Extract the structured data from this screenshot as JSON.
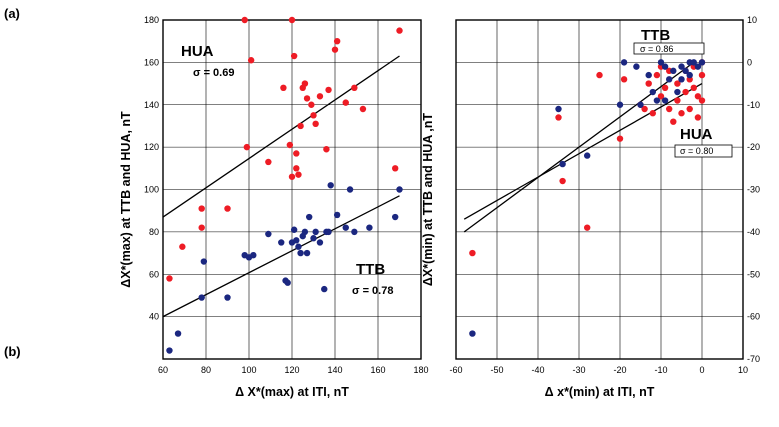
{
  "labels": {
    "a": "(a)",
    "b": "(b)"
  },
  "colors": {
    "red": "#ee1c25",
    "blue": "#1b2780",
    "axis": "#000000",
    "grid": "#000000"
  },
  "chart_data": [
    {
      "type": "scatter",
      "xlabel": "Δ X*(max) at ITI, nT",
      "ylabel": "ΔX*(max) at TTB and HUA, nT",
      "xlim": [
        60,
        180
      ],
      "ylim": [
        20,
        180
      ],
      "xticks": [
        60,
        80,
        100,
        120,
        140,
        160,
        180
      ],
      "yticks": [
        40,
        60,
        80,
        100,
        120,
        140,
        160,
        180
      ],
      "grid": true,
      "annotations": [
        {
          "name": "HUA",
          "sigma": "σ =  0.69"
        },
        {
          "name": "TTB",
          "sigma": "σ = 0.78"
        }
      ],
      "series": [
        {
          "name": "HUA",
          "color": "#ee1c25",
          "points": [
            [
              63,
              58
            ],
            [
              69,
              73
            ],
            [
              78,
              91
            ],
            [
              78,
              82
            ],
            [
              90,
              91
            ],
            [
              98,
              180
            ],
            [
              99,
              120
            ],
            [
              101,
              161
            ],
            [
              109,
              113
            ],
            [
              116,
              148
            ],
            [
              119,
              121
            ],
            [
              120,
              180
            ],
            [
              120,
              106
            ],
            [
              121,
              163
            ],
            [
              122,
              110
            ],
            [
              122,
              117
            ],
            [
              123,
              107
            ],
            [
              124,
              130
            ],
            [
              125,
              148
            ],
            [
              126,
              150
            ],
            [
              127,
              143
            ],
            [
              129,
              140
            ],
            [
              130,
              135
            ],
            [
              131,
              131
            ],
            [
              133,
              144
            ],
            [
              136,
              119
            ],
            [
              137,
              147
            ],
            [
              140,
              166
            ],
            [
              141,
              170
            ],
            [
              145,
              141
            ],
            [
              149,
              148
            ],
            [
              153,
              138
            ],
            [
              168,
              110
            ],
            [
              170,
              175
            ]
          ]
        },
        {
          "name": "TTB",
          "color": "#1b2780",
          "points": [
            [
              63,
              24
            ],
            [
              67,
              32
            ],
            [
              78,
              49
            ],
            [
              79,
              66
            ],
            [
              90,
              49
            ],
            [
              98,
              69
            ],
            [
              100,
              68
            ],
            [
              102,
              69
            ],
            [
              109,
              79
            ],
            [
              115,
              75
            ],
            [
              117,
              57
            ],
            [
              118,
              56
            ],
            [
              120,
              75
            ],
            [
              121,
              81
            ],
            [
              122,
              76
            ],
            [
              123,
              73
            ],
            [
              124,
              70
            ],
            [
              125,
              78
            ],
            [
              126,
              80
            ],
            [
              127,
              70
            ],
            [
              128,
              87
            ],
            [
              130,
              77
            ],
            [
              131,
              80
            ],
            [
              133,
              75
            ],
            [
              135,
              53
            ],
            [
              136,
              80
            ],
            [
              137,
              80
            ],
            [
              138,
              102
            ],
            [
              141,
              88
            ],
            [
              145,
              82
            ],
            [
              147,
              100
            ],
            [
              149,
              80
            ],
            [
              156,
              82
            ],
            [
              168,
              87
            ],
            [
              170,
              100
            ]
          ]
        }
      ],
      "fits": [
        {
          "series": "HUA",
          "from": [
            60,
            87
          ],
          "to": [
            170,
            163
          ]
        },
        {
          "series": "TTB",
          "from": [
            60,
            40
          ],
          "to": [
            170,
            97
          ]
        }
      ]
    },
    {
      "type": "scatter",
      "xlabel": "Δ x*(min) at ITI, nT",
      "ylabel": "ΔX*(min) at TTB and HUA ,nT",
      "xlim": [
        -60,
        10
      ],
      "ylim": [
        -70,
        10
      ],
      "xticks": [
        -60,
        -50,
        -40,
        -30,
        -20,
        -10,
        0,
        10
      ],
      "yticks": [
        -70,
        -60,
        -50,
        -40,
        -30,
        -20,
        -10,
        0,
        10
      ],
      "grid": true,
      "annotations": [
        {
          "name": "TTB",
          "sigma": "σ = 0.86"
        },
        {
          "name": "HUA",
          "sigma": "σ = 0.80"
        }
      ],
      "series": [
        {
          "name": "HUA",
          "color": "#ee1c25",
          "points": [
            [
              -56,
              -45
            ],
            [
              -35,
              -13
            ],
            [
              -34,
              -28
            ],
            [
              -28,
              -39
            ],
            [
              -25,
              -3
            ],
            [
              -20,
              -18
            ],
            [
              -19,
              -4
            ],
            [
              -15,
              -10
            ],
            [
              -13,
              -5
            ],
            [
              -12,
              -12
            ],
            [
              -11,
              -3
            ],
            [
              -10,
              -8
            ],
            [
              -9,
              -6
            ],
            [
              -8,
              -11
            ],
            [
              -8,
              -2
            ],
            [
              -7,
              -14
            ],
            [
              -6,
              -5
            ],
            [
              -6,
              -9
            ],
            [
              -5,
              -12
            ],
            [
              -4,
              -2
            ],
            [
              -4,
              -7
            ],
            [
              -3,
              -4
            ],
            [
              -3,
              -11
            ],
            [
              -2,
              -1
            ],
            [
              -2,
              -6
            ],
            [
              -1,
              -8
            ],
            [
              -1,
              -13
            ],
            [
              0,
              -3
            ],
            [
              0,
              -9
            ],
            [
              0,
              0
            ],
            [
              -14,
              -11
            ],
            [
              -10,
              -1
            ]
          ]
        },
        {
          "name": "TTB",
          "color": "#1b2780",
          "points": [
            [
              -56,
              -64
            ],
            [
              -35,
              -11
            ],
            [
              -34,
              -24
            ],
            [
              -28,
              -22
            ],
            [
              -20,
              -10
            ],
            [
              -19,
              0
            ],
            [
              -15,
              -10
            ],
            [
              -13,
              -3
            ],
            [
              -12,
              -7
            ],
            [
              -11,
              -9
            ],
            [
              -10,
              0
            ],
            [
              -9,
              -1
            ],
            [
              -8,
              -4
            ],
            [
              -7,
              -2
            ],
            [
              -6,
              -7
            ],
            [
              -5,
              -1
            ],
            [
              -5,
              -4
            ],
            [
              -4,
              -2
            ],
            [
              -3,
              0
            ],
            [
              -3,
              -3
            ],
            [
              -2,
              0
            ],
            [
              -1,
              -1
            ],
            [
              0,
              0
            ],
            [
              -16,
              -1
            ],
            [
              -9,
              -9
            ]
          ]
        }
      ],
      "fits": [
        {
          "series": "TTB",
          "from": [
            -58,
            -40
          ],
          "to": [
            -2,
            0
          ]
        },
        {
          "series": "HUA",
          "from": [
            -58,
            -37
          ],
          "to": [
            0,
            -5
          ]
        }
      ]
    }
  ]
}
